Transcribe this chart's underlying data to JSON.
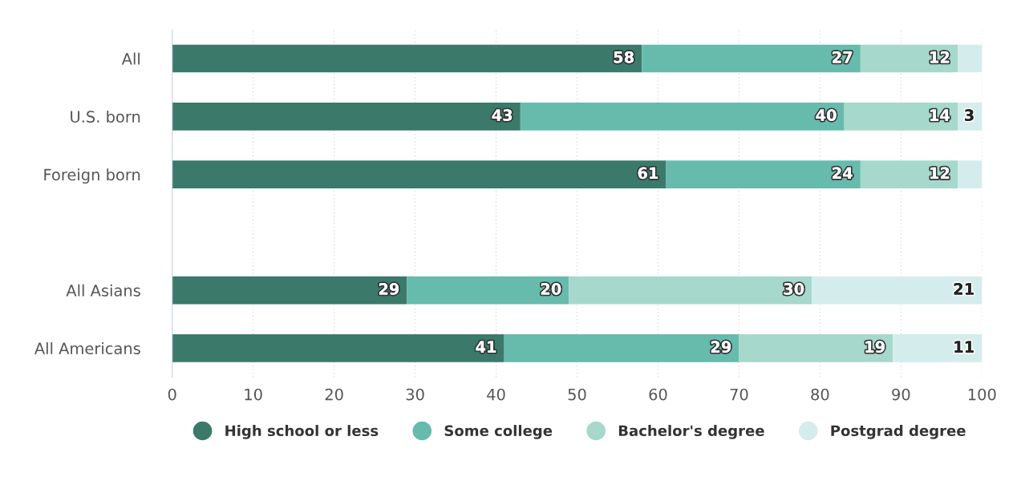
{
  "chart_data": {
    "type": "bar",
    "orientation": "horizontal",
    "stacked": true,
    "categories": [
      "All",
      "U.S. born",
      "Foreign born",
      null,
      "All Asians",
      "All Americans"
    ],
    "series": [
      {
        "name": "High school or less",
        "color": "#3b7a6b",
        "values": [
          58,
          43,
          61,
          null,
          29,
          41
        ],
        "value_labels": [
          "58",
          "43",
          "61",
          null,
          "29",
          "41"
        ]
      },
      {
        "name": "Some college",
        "color": "#66bbad",
        "values": [
          27,
          40,
          24,
          null,
          20,
          29
        ],
        "value_labels": [
          "27",
          "40",
          "24",
          null,
          "20",
          "29"
        ]
      },
      {
        "name": "Bachelor's degree",
        "color": "#a6d8cc",
        "values": [
          12,
          14,
          12,
          null,
          30,
          19
        ],
        "value_labels": [
          "12",
          "14",
          "12",
          null,
          "30",
          "19"
        ]
      },
      {
        "name": "Postgrad degree",
        "color": "#d5ecec",
        "values": [
          3,
          3,
          3,
          null,
          21,
          11
        ],
        "value_labels": [
          null,
          "3",
          null,
          null,
          "21",
          "11"
        ]
      }
    ],
    "xlim": [
      0,
      100
    ],
    "xticks": [
      0,
      10,
      20,
      30,
      40,
      50,
      60,
      70,
      80,
      90,
      100
    ],
    "grid": "x",
    "legend": "bottom"
  }
}
